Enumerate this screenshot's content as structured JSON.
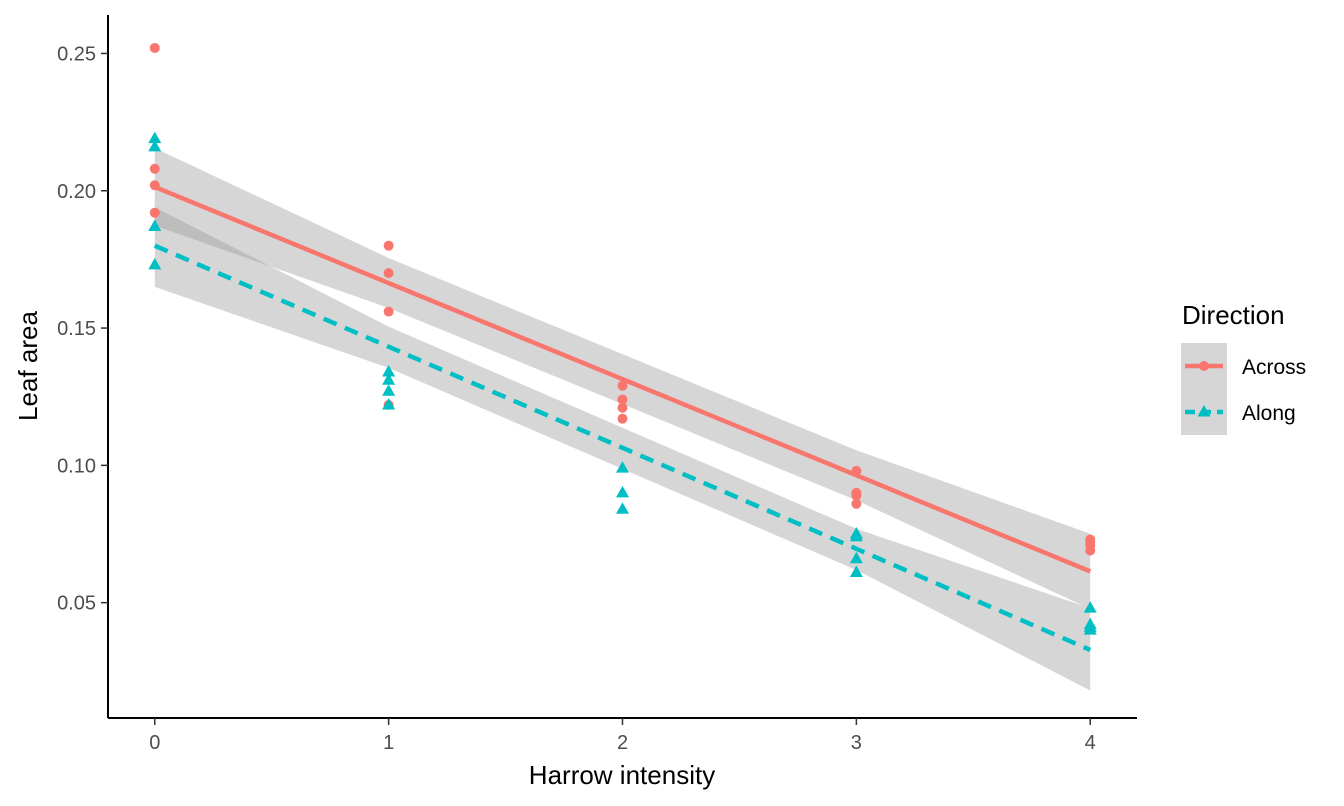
{
  "chart_data": {
    "type": "scatter",
    "xlabel": "Harrow intensity",
    "ylabel": "Leaf area",
    "xlim": [
      -0.2,
      4.2
    ],
    "ylim": [
      0.008,
      0.264
    ],
    "x_ticks": [
      0,
      1,
      2,
      3,
      4
    ],
    "y_ticks": [
      0.05,
      0.1,
      0.15,
      0.2,
      0.25
    ],
    "y_tick_labels": [
      "0.05",
      "0.10",
      "0.15",
      "0.20",
      "0.25"
    ],
    "x_tick_labels": [
      "0",
      "1",
      "2",
      "3",
      "4"
    ],
    "grid": false,
    "legend": {
      "title": "Direction",
      "placement": "right"
    },
    "series": [
      {
        "name": "Across",
        "color": "#F8766D",
        "marker": "circle",
        "line_style": "solid",
        "points": [
          [
            0,
            0.252
          ],
          [
            0,
            0.208
          ],
          [
            0,
            0.202
          ],
          [
            0,
            0.192
          ],
          [
            1,
            0.18
          ],
          [
            1,
            0.17
          ],
          [
            1,
            0.156
          ],
          [
            1,
            0.122
          ],
          [
            2,
            0.129
          ],
          [
            2,
            0.124
          ],
          [
            2,
            0.121
          ],
          [
            2,
            0.117
          ],
          [
            3,
            0.098
          ],
          [
            3,
            0.09
          ],
          [
            3,
            0.089
          ],
          [
            3,
            0.086
          ],
          [
            4,
            0.073
          ],
          [
            4,
            0.072
          ],
          [
            4,
            0.071
          ],
          [
            4,
            0.069
          ]
        ],
        "fit": {
          "intercept": 0.2014,
          "slope": -0.035
        },
        "ci": [
          {
            "x": 0,
            "lo": 0.1873,
            "hi": 0.2155
          },
          {
            "x": 1,
            "lo": 0.1573,
            "hi": 0.1755
          },
          {
            "x": 2,
            "lo": 0.1223,
            "hi": 0.1405
          },
          {
            "x": 3,
            "lo": 0.0873,
            "hi": 0.1055
          },
          {
            "x": 4,
            "lo": 0.0477,
            "hi": 0.0751
          }
        ]
      },
      {
        "name": "Along",
        "color": "#00BFC4",
        "marker": "triangle",
        "line_style": "dashed",
        "points": [
          [
            0,
            0.219
          ],
          [
            0,
            0.216
          ],
          [
            0,
            0.187
          ],
          [
            0,
            0.173
          ],
          [
            1,
            0.134
          ],
          [
            1,
            0.131
          ],
          [
            1,
            0.127
          ],
          [
            1,
            0.122
          ],
          [
            2,
            0.099
          ],
          [
            2,
            0.09
          ],
          [
            2,
            0.084
          ],
          [
            3,
            0.075
          ],
          [
            3,
            0.074
          ],
          [
            3,
            0.066
          ],
          [
            3,
            0.061
          ],
          [
            4,
            0.048
          ],
          [
            4,
            0.042
          ],
          [
            4,
            0.041
          ],
          [
            4,
            0.04
          ]
        ],
        "fit": {
          "intercept": 0.18,
          "slope": -0.0368
        },
        "ci": [
          {
            "x": 0,
            "lo": 0.165,
            "hi": 0.194
          },
          {
            "x": 1,
            "lo": 0.1355,
            "hi": 0.1505
          },
          {
            "x": 2,
            "lo": 0.0987,
            "hi": 0.1137
          },
          {
            "x": 3,
            "lo": 0.0619,
            "hi": 0.0769
          },
          {
            "x": 4,
            "lo": 0.018,
            "hi": 0.048
          }
        ]
      }
    ],
    "ci_fill_color": "#999999"
  }
}
